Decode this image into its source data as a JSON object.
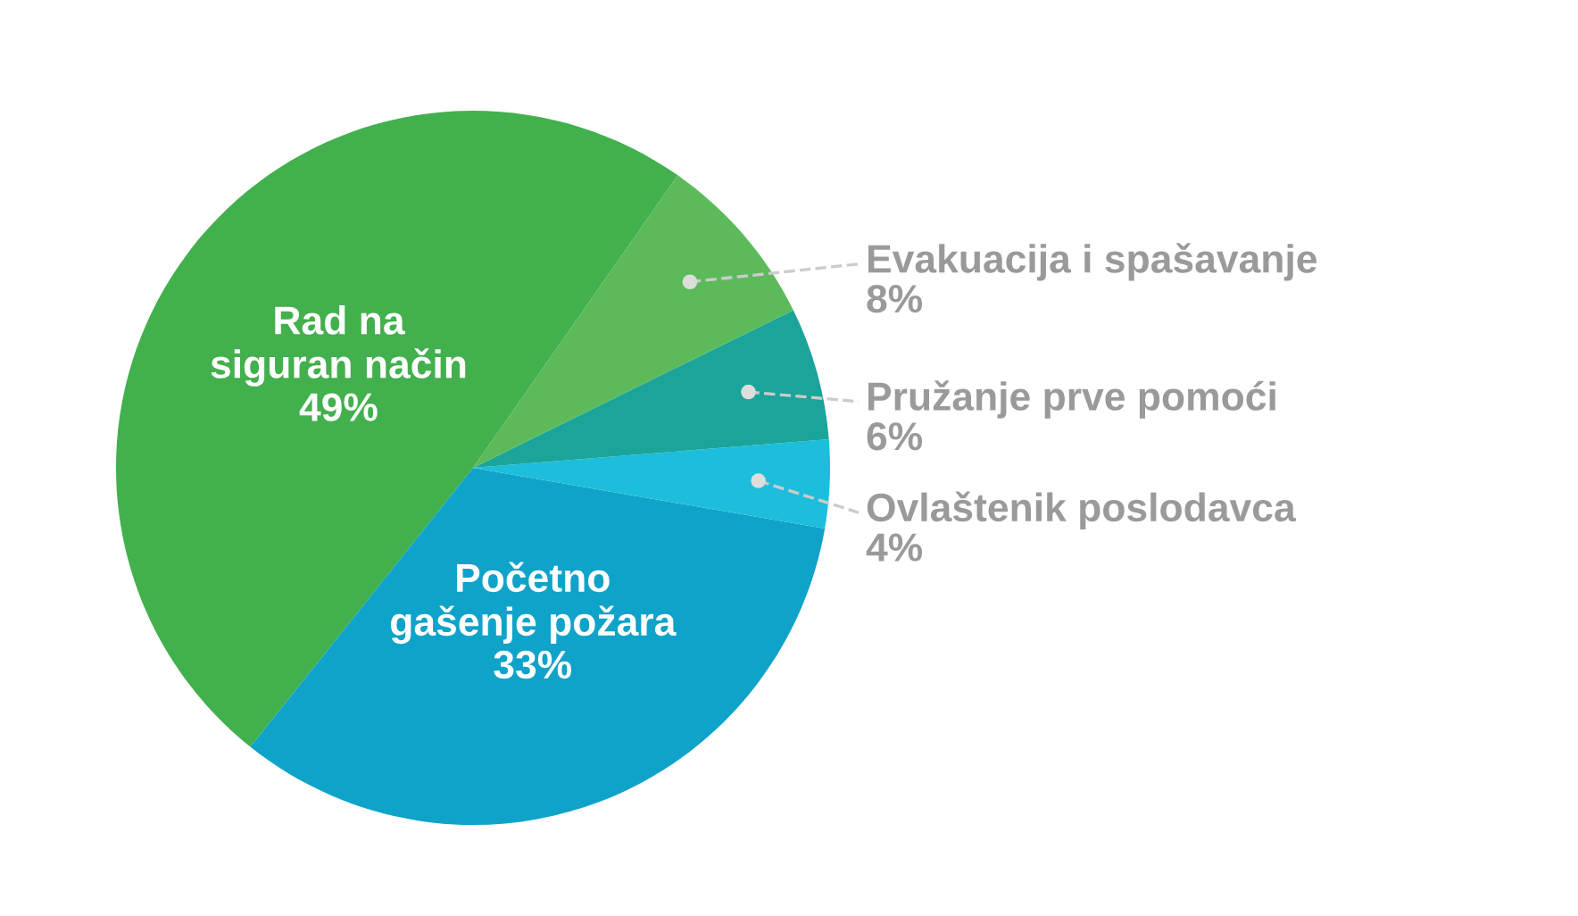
{
  "chart_data": {
    "type": "pie",
    "categories": [
      "Rad na\nsiguran način",
      "Početno\ngašenje požara",
      "Ovlaštenik poslodavca",
      "Pružanje prve pomoći",
      "Evakuacija i spašavanje"
    ],
    "values": [
      49,
      33,
      4,
      6,
      8
    ],
    "colors": [
      "#43b04e",
      "#10a3c9",
      "#1cbedc",
      "#1aa49a",
      "#5cba5a"
    ],
    "value_labels": [
      "49%",
      "33%",
      "4%",
      "6%",
      "8%"
    ],
    "legend": false
  }
}
